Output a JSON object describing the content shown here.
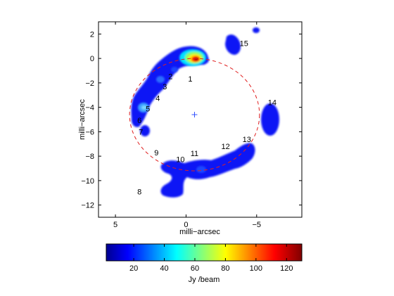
{
  "chart_data": [
    {
      "type": "heatmap",
      "title": "",
      "xlabel": "milli−arcsec",
      "ylabel": "milli−arcsec",
      "xlim": [
        6.2,
        -8.2
      ],
      "ylim": [
        -13,
        3
      ],
      "x_reversed": true,
      "xticks": [
        5,
        0,
        -5
      ],
      "xtick_labels": [
        "5",
        "0",
        "−5"
      ],
      "yticks": [
        2,
        0,
        -2,
        -4,
        -6,
        -8,
        -10,
        -12
      ],
      "ytick_labels": [
        "2",
        "0",
        "−2",
        "−4",
        "−6",
        "−8",
        "−10",
        "−12"
      ],
      "grid": false,
      "colormap": "jet",
      "colorbar": {
        "label": "Jy /beam",
        "range": [
          2,
          130
        ],
        "ticks": [
          20,
          40,
          60,
          80,
          100,
          120
        ],
        "tick_labels": [
          "20",
          "40",
          "60",
          "80",
          "100",
          "120"
        ]
      },
      "ring": {
        "center": [
          -0.6,
          -4.6
        ],
        "radius_x": 4.6,
        "radius_y": 4.6,
        "color": "#e02020",
        "style": "dashed"
      },
      "center_marker": {
        "x": -0.6,
        "y": -4.6,
        "symbol": "+",
        "color": "#3050ff"
      },
      "spots": [
        {
          "label": "1",
          "x": -0.3,
          "y": 0.1,
          "peak": 125,
          "label_x": -0.3,
          "label_y": -1.65
        },
        {
          "label": "2",
          "x": 1.6,
          "y": -1.0,
          "peak": 20,
          "label_x": 1.1,
          "label_y": -1.45
        },
        {
          "label": "3",
          "x": 2.5,
          "y": -1.7,
          "peak": 28,
          "label_x": 1.5,
          "label_y": -2.3
        },
        {
          "label": "4",
          "x": 2.9,
          "y": -2.8,
          "peak": 15,
          "label_x": 2.0,
          "label_y": -3.25
        },
        {
          "label": "5",
          "x": 3.8,
          "y": -3.9,
          "peak": 38,
          "label_x": 2.7,
          "label_y": -4.1
        },
        {
          "label": "6",
          "x": 4.0,
          "y": -5.0,
          "peak": 18,
          "label_x": 3.3,
          "label_y": -5.05
        },
        {
          "label": "7",
          "x": 3.9,
          "y": -6.1,
          "peak": 10,
          "label_x": 3.2,
          "label_y": -6.0
        },
        {
          "label": "8",
          "x": 1.9,
          "y": -10.7,
          "peak": 15,
          "label_x": 3.3,
          "label_y": -10.9
        },
        {
          "label": "9",
          "x": 2.8,
          "y": -8.4,
          "peak": 12,
          "label_x": 2.1,
          "label_y": -7.7
        },
        {
          "label": "10",
          "x": 1.0,
          "y": -8.8,
          "peak": 14,
          "label_x": 0.4,
          "label_y": -8.25
        },
        {
          "label": "11",
          "x": -0.5,
          "y": -9.2,
          "peak": 16,
          "label_x": -0.6,
          "label_y": -7.75
        },
        {
          "label": "12",
          "x": -2.5,
          "y": -8.3,
          "peak": 14,
          "label_x": -2.8,
          "label_y": -7.2
        },
        {
          "label": "13",
          "x": -4.3,
          "y": -7.6,
          "peak": 12,
          "label_x": -4.3,
          "label_y": -6.6
        },
        {
          "label": "14",
          "x": -5.7,
          "y": -4.8,
          "peak": 14,
          "label_x": -6.1,
          "label_y": -3.6
        },
        {
          "label": "15",
          "x": -2.9,
          "y": 1.2,
          "peak": 10,
          "label_x": -4.1,
          "label_y": 1.25
        }
      ]
    }
  ]
}
